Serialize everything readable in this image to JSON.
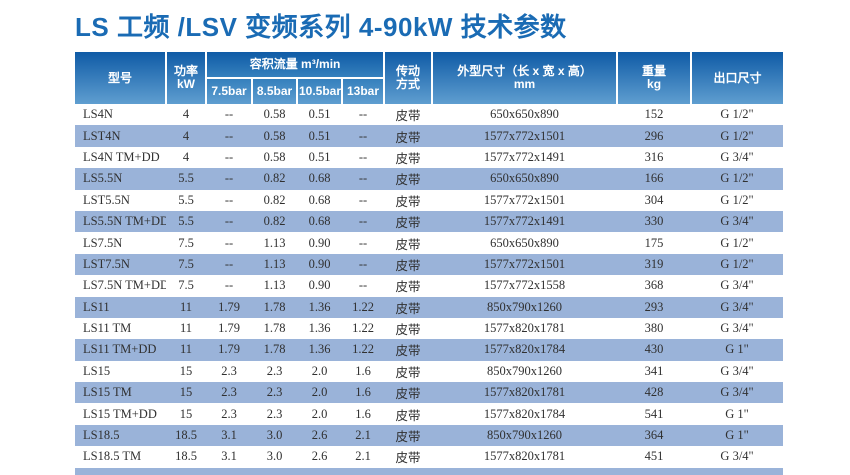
{
  "page": {
    "title": "LS 工频 /LSV 变频系列 4-90kW 技术参数"
  },
  "colors": {
    "title_blue": "#1a6bb4",
    "header_gradient_top": "#0f5ba6",
    "header_gradient_bottom": "#5f9ed0",
    "row_alt_blue": "#9ab3d9",
    "body_text": "#303030"
  },
  "table": {
    "headers": {
      "model": "型号",
      "power_line1": "功率",
      "power_line2": "kW",
      "flow_group": "容积流量 m³/min",
      "flow_cols": [
        "7.5bar",
        "8.5bar",
        "10.5bar",
        "13bar"
      ],
      "drive_line1": "传动",
      "drive_line2": "方式",
      "dims_line1": "外型尺寸（长 x 宽 x 高）",
      "dims_line2": "mm",
      "weight_line1": "重量",
      "weight_line2": "kg",
      "outlet": "出口尺寸"
    },
    "rows": [
      [
        "LS4N",
        "4",
        "--",
        "0.58",
        "0.51",
        "--",
        "皮带",
        "650x650x890",
        "152",
        "G 1/2\""
      ],
      [
        "LST4N",
        "4",
        "--",
        "0.58",
        "0.51",
        "--",
        "皮带",
        "1577x772x1501",
        "296",
        "G 1/2\""
      ],
      [
        "LS4N TM+DD",
        "4",
        "--",
        "0.58",
        "0.51",
        "--",
        "皮带",
        "1577x772x1491",
        "316",
        "G 3/4\""
      ],
      [
        "LS5.5N",
        "5.5",
        "--",
        "0.82",
        "0.68",
        "--",
        "皮带",
        "650x650x890",
        "166",
        "G 1/2\""
      ],
      [
        "LST5.5N",
        "5.5",
        "--",
        "0.82",
        "0.68",
        "--",
        "皮带",
        "1577x772x1501",
        "304",
        "G 1/2\""
      ],
      [
        "LS5.5N TM+DD",
        "5.5",
        "--",
        "0.82",
        "0.68",
        "--",
        "皮带",
        "1577x772x1491",
        "330",
        "G 3/4\""
      ],
      [
        "LS7.5N",
        "7.5",
        "--",
        "1.13",
        "0.90",
        "--",
        "皮带",
        "650x650x890",
        "175",
        "G 1/2\""
      ],
      [
        "LST7.5N",
        "7.5",
        "--",
        "1.13",
        "0.90",
        "--",
        "皮带",
        "1577x772x1501",
        "319",
        "G 1/2\""
      ],
      [
        "LS7.5N TM+DD",
        "7.5",
        "--",
        "1.13",
        "0.90",
        "--",
        "皮带",
        "1577x772x1558",
        "368",
        "G 3/4\""
      ],
      [
        "LS11",
        "11",
        "1.79",
        "1.78",
        "1.36",
        "1.22",
        "皮带",
        "850x790x1260",
        "293",
        "G 3/4\""
      ],
      [
        "LS11 TM",
        "11",
        "1.79",
        "1.78",
        "1.36",
        "1.22",
        "皮带",
        "1577x820x1781",
        "380",
        "G 3/4\""
      ],
      [
        "LS11 TM+DD",
        "11",
        "1.79",
        "1.78",
        "1.36",
        "1.22",
        "皮带",
        "1577x820x1784",
        "430",
        "G 1\""
      ],
      [
        "LS15",
        "15",
        "2.3",
        "2.3",
        "2.0",
        "1.6",
        "皮带",
        "850x790x1260",
        "341",
        "G 3/4\""
      ],
      [
        "LS15 TM",
        "15",
        "2.3",
        "2.3",
        "2.0",
        "1.6",
        "皮带",
        "1577x820x1781",
        "428",
        "G 3/4\""
      ],
      [
        "LS15 TM+DD",
        "15",
        "2.3",
        "2.3",
        "2.0",
        "1.6",
        "皮带",
        "1577x820x1784",
        "541",
        "G 1\""
      ],
      [
        "LS18.5",
        "18.5",
        "3.1",
        "3.0",
        "2.6",
        "2.1",
        "皮带",
        "850x790x1260",
        "364",
        "G 1\""
      ],
      [
        "LS18.5 TM",
        "18.5",
        "3.1",
        "3.0",
        "2.6",
        "2.1",
        "皮带",
        "1577x820x1781",
        "451",
        "G 3/4\""
      ]
    ]
  }
}
